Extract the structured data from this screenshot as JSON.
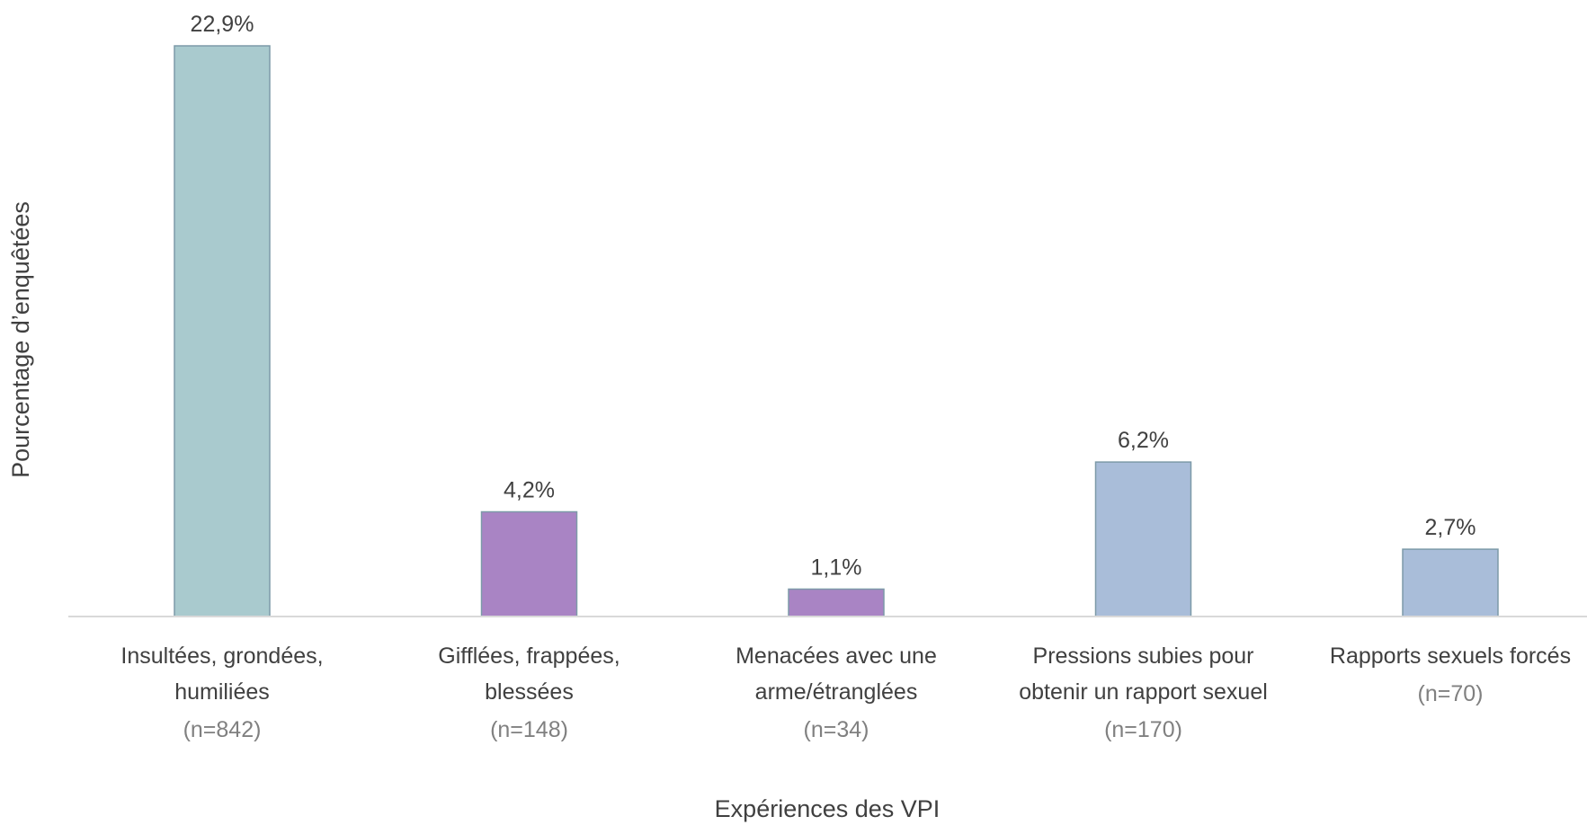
{
  "chart_data": {
    "type": "bar",
    "title": "",
    "xlabel": "Expériences des VPI",
    "ylabel": "Pourcentage d’enquêtées",
    "ylim": [
      0,
      25
    ],
    "grid": false,
    "legend": "none",
    "categories": [
      {
        "lines": [
          "Insultées, grondées,",
          "humiliées"
        ],
        "n_label": "(n=842)",
        "value": 22.9,
        "value_label": "22,9%",
        "color": "#a9cace"
      },
      {
        "lines": [
          "Gifflées, frappées,",
          "blessées"
        ],
        "n_label": "(n=148)",
        "value": 4.2,
        "value_label": "4,2%",
        "color": "#a984c4"
      },
      {
        "lines": [
          "Menacées avec une",
          "arme/étranglées"
        ],
        "n_label": "(n=34)",
        "value": 1.1,
        "value_label": "1,1%",
        "color": "#a984c4"
      },
      {
        "lines": [
          "Pressions subies pour",
          "obtenir un rapport sexuel"
        ],
        "n_label": "(n=170)",
        "value": 6.2,
        "value_label": "6,2%",
        "color": "#a9bdd9"
      },
      {
        "lines": [
          "Rapports sexuels forcés"
        ],
        "n_label": "(n=70)",
        "value": 2.7,
        "value_label": "2,7%",
        "color": "#a9bdd9"
      }
    ],
    "colors": {
      "bar_stroke": "#7d9aa8",
      "axis_line": "#d9d9d9",
      "text": "#404040",
      "n_text": "#808080"
    }
  }
}
